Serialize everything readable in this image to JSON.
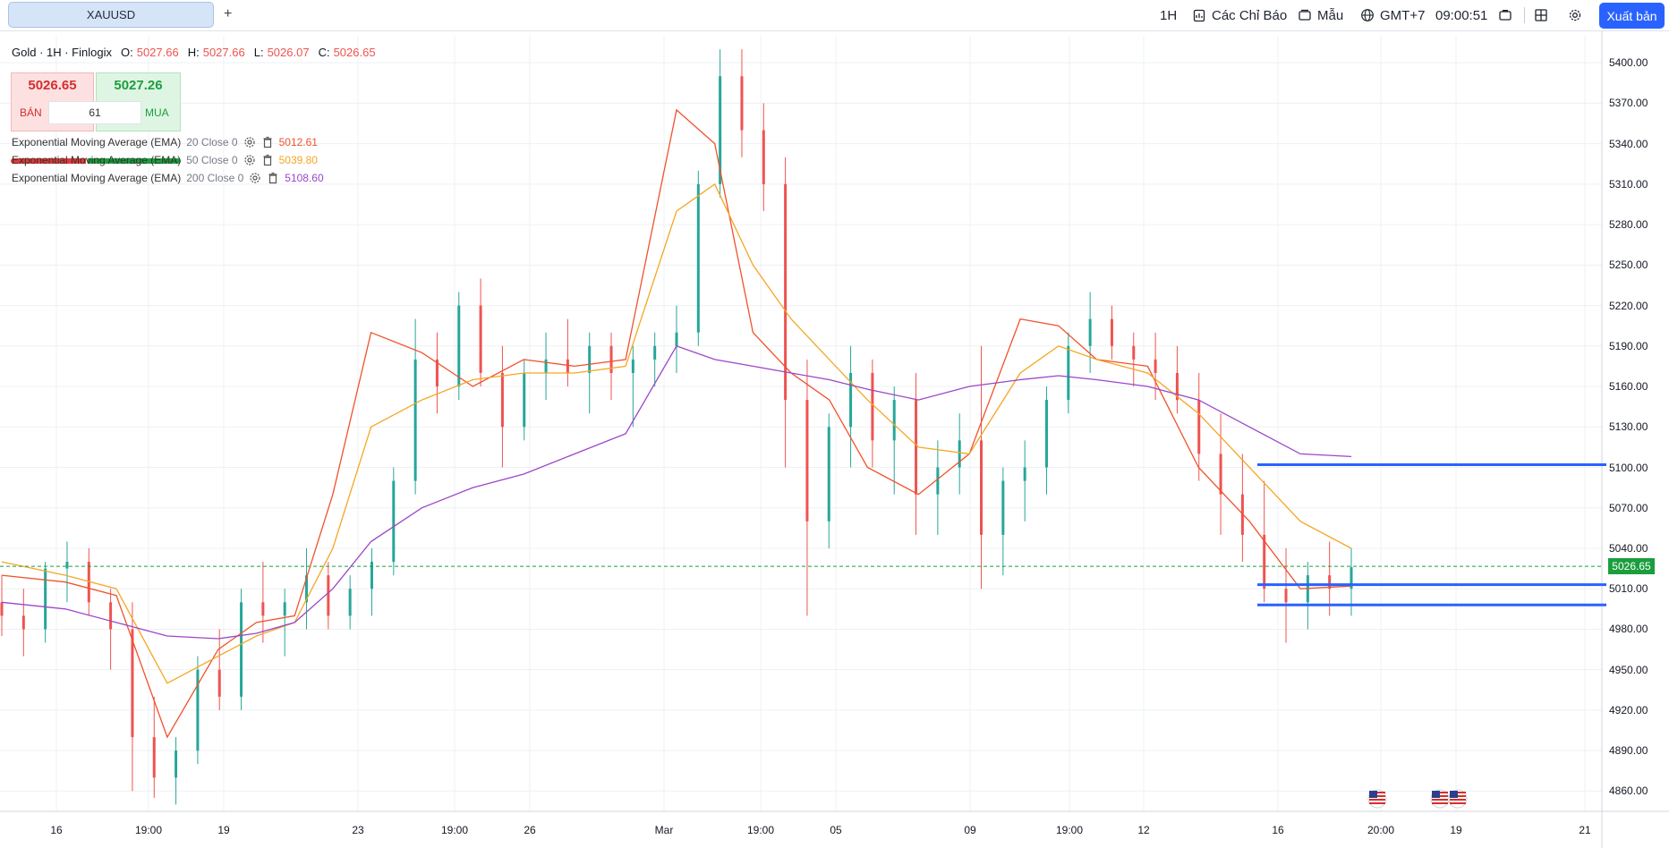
{
  "toolbar": {
    "symbol_tab": "XAUUSD",
    "add_tab": "+",
    "timeframe": "1H",
    "indicators_label": "Các Chỉ Báo",
    "templates_label": "Mẫu",
    "timezone": "GMT+7",
    "clock": "09:00:51",
    "publish_label": "Xuất bản"
  },
  "legend": {
    "title": "Gold · 1H · Finlogix",
    "open_key": "O:",
    "open": "5027.66",
    "high_key": "H:",
    "high": "5027.66",
    "low_key": "L:",
    "low": "5026.07",
    "close_key": "C:",
    "close": "5026.65"
  },
  "trade": {
    "sell_price": "5026.65",
    "buy_price": "5027.26",
    "sell_label": "BÁN",
    "buy_label": "MUA",
    "spread": "61"
  },
  "indicators": [
    {
      "name": "Exponential Moving Average (EMA)",
      "params": "20 Close 0",
      "value": "5012.61",
      "color": "#f0522c"
    },
    {
      "name": "Exponential Moving Average (EMA)",
      "params": "50 Close 0",
      "value": "5039.80",
      "color": "#f5a623"
    },
    {
      "name": "Exponential Moving Average (EMA)",
      "params": "200 Close 0",
      "value": "5108.60",
      "color": "#9c46c8"
    }
  ],
  "price_axis": [
    "5400.00",
    "5370.00",
    "5340.00",
    "5310.00",
    "5280.00",
    "5250.00",
    "5220.00",
    "5190.00",
    "5160.00",
    "5130.00",
    "5100.00",
    "5070.00",
    "5040.00",
    "5010.00",
    "4980.00",
    "4950.00",
    "4920.00",
    "4890.00",
    "4860.00"
  ],
  "current_price_label": "5026.65",
  "time_axis": [
    "16",
    "19:00",
    "19",
    "23",
    "19:00",
    "26",
    "Mar",
    "19:00",
    "05",
    "09",
    "19:00",
    "12",
    "16",
    "20:00",
    "19",
    "21"
  ],
  "colors": {
    "up": "#26a69a",
    "down": "#ef5350",
    "ema20": "#f0522c",
    "ema50": "#f5a623",
    "ema200": "#9c46c8",
    "hline": "#2962ff",
    "accent": "#2962ff"
  },
  "chart_data": {
    "type": "line",
    "title": "Gold · 1H · Finlogix",
    "ylim": [
      4845,
      5420
    ],
    "current_price": 5026.65,
    "horizontal_levels": [
      5102,
      5013,
      4998
    ],
    "series": [
      {
        "name": "Exponential Moving Average (EMA) 20 Close 0",
        "x": [
          0,
          5,
          9,
          13,
          17,
          20,
          23,
          26,
          29,
          33,
          37,
          41,
          45,
          49,
          53,
          56,
          59,
          62,
          65,
          68,
          72,
          76,
          80,
          83,
          86,
          90,
          94,
          98,
          102,
          106
        ],
        "y": [
          5020,
          5015,
          5005,
          4900,
          4965,
          4985,
          4990,
          5080,
          5200,
          5185,
          5160,
          5180,
          5175,
          5180,
          5365,
          5340,
          5200,
          5170,
          5150,
          5100,
          5080,
          5110,
          5210,
          5205,
          5180,
          5175,
          5100,
          5060,
          5010,
          5012
        ]
      },
      {
        "name": "Exponential Moving Average (EMA) 50 Close 0",
        "x": [
          0,
          5,
          9,
          13,
          17,
          20,
          23,
          26,
          29,
          33,
          37,
          41,
          45,
          49,
          53,
          56,
          59,
          62,
          65,
          68,
          72,
          76,
          80,
          83,
          86,
          90,
          94,
          98,
          102,
          106
        ],
        "y": [
          5030,
          5020,
          5010,
          4940,
          4960,
          4975,
          4985,
          5040,
          5130,
          5150,
          5165,
          5170,
          5170,
          5175,
          5290,
          5310,
          5250,
          5210,
          5180,
          5150,
          5115,
          5110,
          5170,
          5190,
          5180,
          5170,
          5140,
          5100,
          5060,
          5040
        ]
      },
      {
        "name": "Exponential Moving Average (EMA) 200 Close 0",
        "x": [
          0,
          5,
          9,
          13,
          17,
          20,
          23,
          26,
          29,
          33,
          37,
          41,
          45,
          49,
          53,
          56,
          59,
          62,
          65,
          68,
          72,
          76,
          80,
          83,
          86,
          90,
          94,
          98,
          102,
          106
        ],
        "y": [
          5000,
          4995,
          4985,
          4975,
          4973,
          4977,
          4985,
          5010,
          5045,
          5070,
          5085,
          5095,
          5110,
          5125,
          5190,
          5180,
          5175,
          5170,
          5165,
          5158,
          5150,
          5160,
          5165,
          5168,
          5165,
          5160,
          5150,
          5130,
          5110,
          5108
        ]
      },
      {
        "name": "candles",
        "values": [
          [
            5000,
            5020,
            4975,
            4990
          ],
          [
            4990,
            5010,
            4960,
            4980
          ],
          [
            4980,
            5030,
            4970,
            5025
          ],
          [
            5025,
            5045,
            5000,
            5030
          ],
          [
            5030,
            5040,
            4990,
            5000
          ],
          [
            5000,
            5010,
            4950,
            4980
          ],
          [
            4980,
            5000,
            4860,
            4900
          ],
          [
            4900,
            4930,
            4855,
            4870
          ],
          [
            4870,
            4900,
            4850,
            4890
          ],
          [
            4890,
            4960,
            4880,
            4950
          ],
          [
            4950,
            4980,
            4920,
            4930
          ],
          [
            4930,
            5010,
            4920,
            5000
          ],
          [
            5000,
            5030,
            4970,
            4990
          ],
          [
            4990,
            5010,
            4960,
            5000
          ],
          [
            5000,
            5040,
            4980,
            5020
          ],
          [
            5020,
            5030,
            4980,
            4990
          ],
          [
            4990,
            5020,
            4980,
            5010
          ],
          [
            5010,
            5040,
            4990,
            5030
          ],
          [
            5030,
            5100,
            5020,
            5090
          ],
          [
            5090,
            5210,
            5080,
            5180
          ],
          [
            5180,
            5200,
            5140,
            5160
          ],
          [
            5160,
            5230,
            5150,
            5220
          ],
          [
            5220,
            5240,
            5160,
            5170
          ],
          [
            5170,
            5190,
            5100,
            5130
          ],
          [
            5130,
            5180,
            5120,
            5170
          ],
          [
            5170,
            5200,
            5150,
            5180
          ],
          [
            5180,
            5210,
            5160,
            5170
          ],
          [
            5170,
            5200,
            5140,
            5190
          ],
          [
            5190,
            5200,
            5150,
            5170
          ],
          [
            5170,
            5190,
            5130,
            5180
          ],
          [
            5180,
            5200,
            5160,
            5190
          ],
          [
            5190,
            5220,
            5170,
            5200
          ],
          [
            5200,
            5320,
            5190,
            5310
          ],
          [
            5310,
            5410,
            5300,
            5390
          ],
          [
            5390,
            5410,
            5330,
            5350
          ],
          [
            5350,
            5370,
            5290,
            5310
          ],
          [
            5310,
            5330,
            5100,
            5150
          ],
          [
            5150,
            5180,
            4990,
            5060
          ],
          [
            5060,
            5140,
            5040,
            5130
          ],
          [
            5130,
            5190,
            5100,
            5170
          ],
          [
            5170,
            5180,
            5100,
            5120
          ],
          [
            5120,
            5160,
            5080,
            5150
          ],
          [
            5150,
            5170,
            5050,
            5080
          ],
          [
            5080,
            5120,
            5050,
            5100
          ],
          [
            5100,
            5140,
            5080,
            5120
          ],
          [
            5120,
            5190,
            5010,
            5050
          ],
          [
            5050,
            5100,
            5020,
            5090
          ],
          [
            5090,
            5120,
            5060,
            5100
          ],
          [
            5100,
            5160,
            5080,
            5150
          ],
          [
            5150,
            5200,
            5140,
            5190
          ],
          [
            5190,
            5230,
            5170,
            5210
          ],
          [
            5210,
            5220,
            5180,
            5190
          ],
          [
            5190,
            5200,
            5160,
            5180
          ],
          [
            5180,
            5200,
            5150,
            5170
          ],
          [
            5170,
            5190,
            5140,
            5150
          ],
          [
            5150,
            5170,
            5090,
            5110
          ],
          [
            5110,
            5140,
            5050,
            5080
          ],
          [
            5080,
            5110,
            5030,
            5050
          ],
          [
            5050,
            5090,
            5000,
            5010
          ],
          [
            5010,
            5040,
            4970,
            5000
          ],
          [
            5000,
            5030,
            4980,
            5020
          ],
          [
            5020,
            5045,
            4990,
            5010
          ],
          [
            5010,
            5040,
            4990,
            5026
          ]
        ]
      }
    ]
  }
}
